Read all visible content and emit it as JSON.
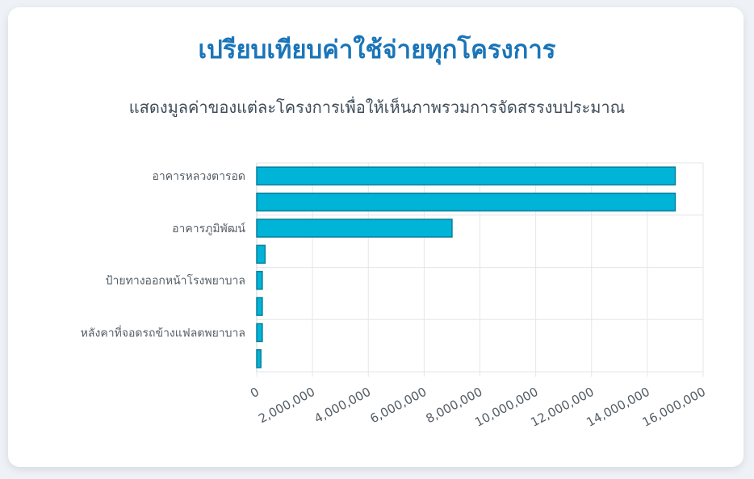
{
  "header": {
    "title": "เปรียบเทียบค่าใช้จ่ายทุกโครงการ",
    "subtitle": "แสดงมูลค่าของแต่ละโครงการเพื่อให้เห็นภาพรวมการจัดสรรงบประมาณ"
  },
  "chart_data": {
    "type": "bar",
    "orientation": "horizontal",
    "categories": [
      "อาคารหลวงตารอด",
      "",
      "อาคารภูมิพัฒน์",
      "",
      "ป้ายทางออกหน้าโรงพยาบาล",
      "",
      "หลังคาที่จอดรถข้างแฟลตพยาบาล",
      ""
    ],
    "values": [
      15000000,
      15000000,
      7000000,
      300000,
      200000,
      200000,
      200000,
      150000
    ],
    "xlim": [
      0,
      16000000
    ],
    "xticks": [
      "0",
      "2,000,000",
      "4,000,000",
      "6,000,000",
      "8,000,000",
      "10,000,000",
      "12,000,000",
      "14,000,000",
      "16,000,000"
    ],
    "grid": true,
    "legend": "none",
    "colors": {
      "bar_fill": "#00b4d8",
      "bar_stroke": "#0a7f9b",
      "grid": "#e3e6ea"
    }
  }
}
